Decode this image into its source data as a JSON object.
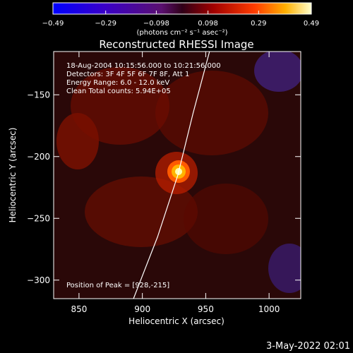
{
  "chart_data": {
    "type": "heatmap",
    "title": "Reconstructed RHESSI Image",
    "xlabel": "Heliocentric X (arcsec)",
    "ylabel": "Heliocentric Y (arcsec)",
    "xlim": [
      830,
      1025
    ],
    "ylim": [
      -315,
      -115
    ],
    "x_ticks": [
      850,
      900,
      950,
      1000
    ],
    "x_tick_labels": [
      "850",
      "900",
      "950",
      "1000"
    ],
    "y_ticks": [
      -150,
      -200,
      -250,
      -300
    ],
    "y_tick_labels": [
      "−150",
      "−200",
      "−250",
      "−300"
    ],
    "colorbar": {
      "range": [
        -0.49,
        0.49
      ],
      "ticks": [
        -0.49,
        -0.29,
        -0.098,
        0.098,
        0.29,
        0.49
      ],
      "tick_labels": [
        "−0.49",
        "−0.29",
        "−0.098",
        "0.098",
        "0.29",
        "0.49"
      ],
      "unit_label": "(photons cm⁻² s⁻¹ asec⁻²)"
    },
    "info_lines": [
      "18-Aug-2004 10:15:56.000 to 10:21:56.000",
      "Detectors: 3F 4F 5F 6F 7F 8F, Att 1",
      "Energy Range: 6.0 - 12.0 keV",
      "Clean    Total counts: 5.94E+05"
    ],
    "peak_label": "Position of Peak = [928,-215]",
    "peak": [
      928,
      -215
    ],
    "limb_curve": [
      [
        953,
        -115
      ],
      [
        940,
        -165
      ],
      [
        928,
        -215
      ],
      [
        912,
        -265
      ],
      [
        893,
        -315
      ]
    ]
  },
  "timestamp": "3-May-2022 02:01"
}
